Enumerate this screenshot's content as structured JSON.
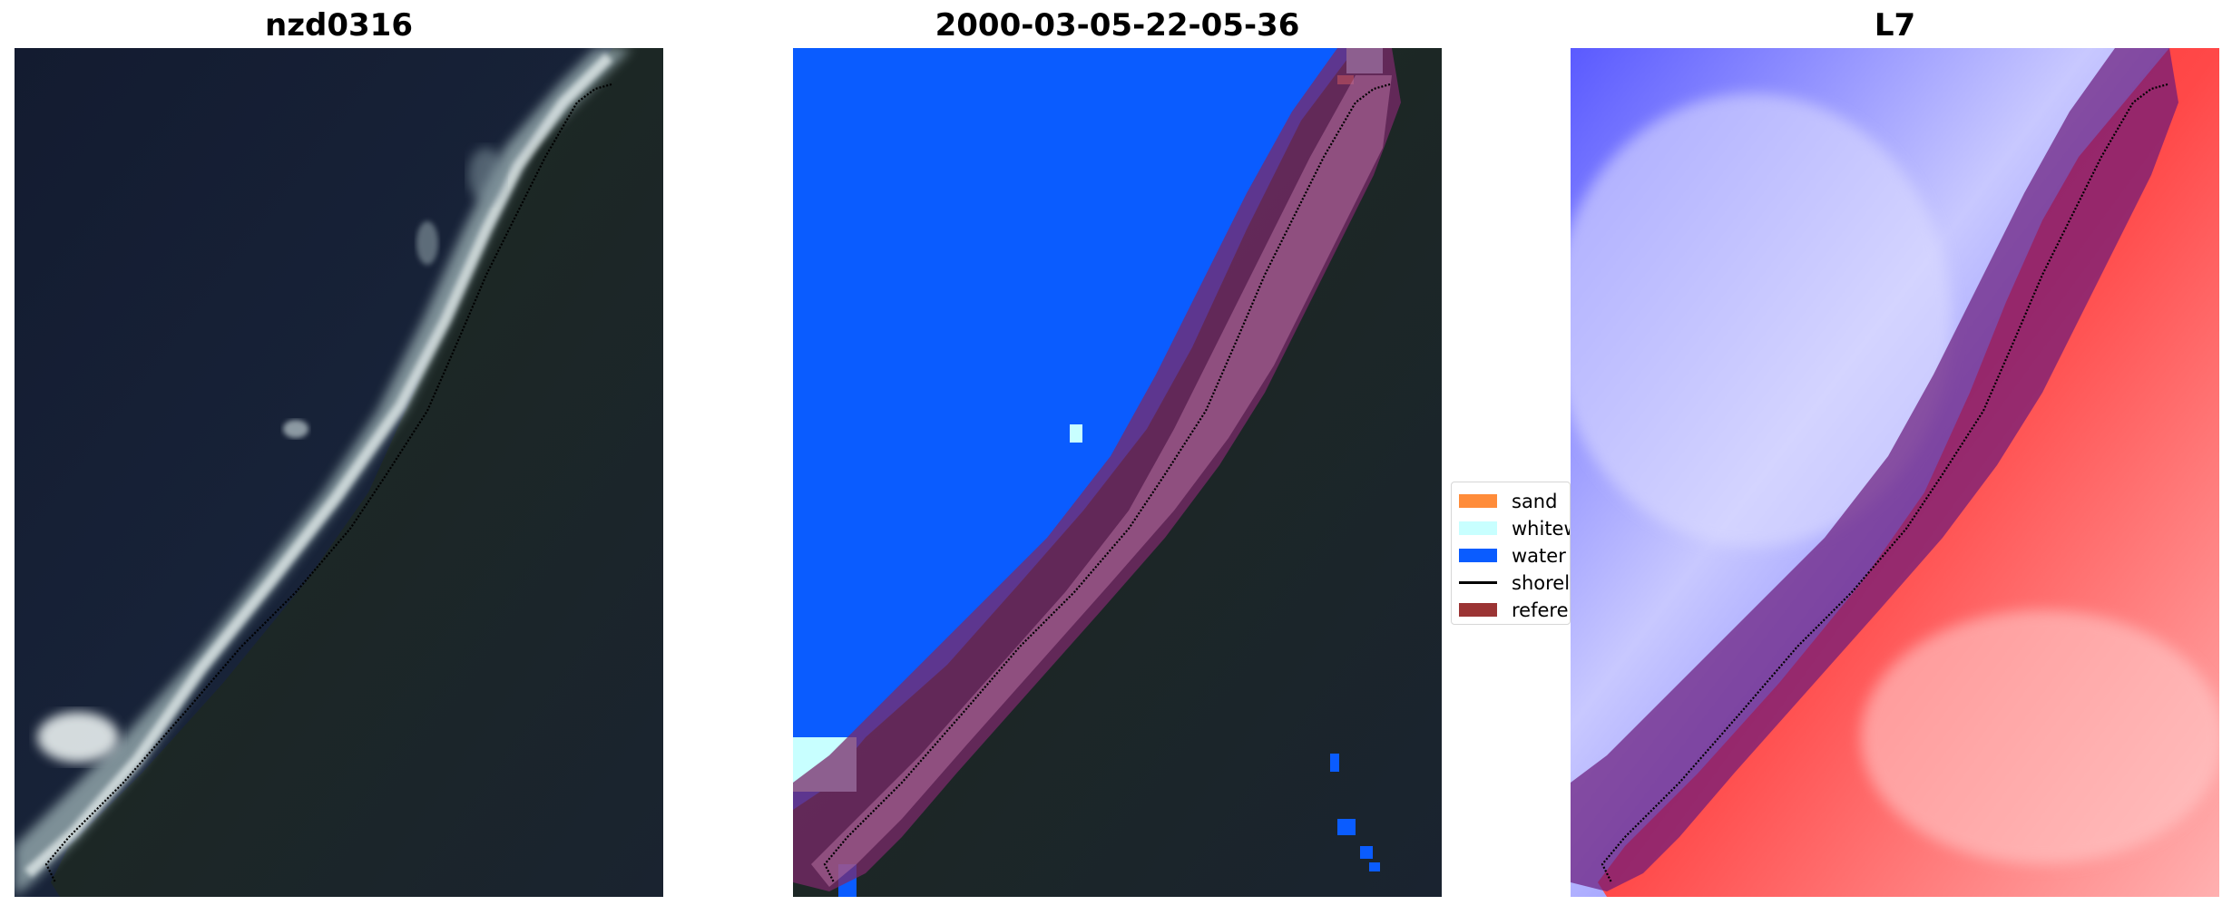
{
  "panels": [
    {
      "title": "nzd0316",
      "image": "satellite RGB image"
    },
    {
      "title": "2000-03-05-22-05-36",
      "image": "classified image"
    },
    {
      "title": "L7",
      "image": "water index image"
    }
  ],
  "legend": {
    "items": [
      {
        "label": "sand",
        "color": "#ff8c3a",
        "kind": "patch"
      },
      {
        "label": "whitew",
        "color": "#c8ffff",
        "kind": "patch"
      },
      {
        "label": "water",
        "color": "#0a5cff",
        "kind": "patch"
      },
      {
        "label": "shorel",
        "color": "#000000",
        "kind": "line"
      },
      {
        "label": "referen",
        "color": "#9b3434",
        "kind": "patch"
      }
    ]
  },
  "colors": {
    "ocean_dark": "#172036",
    "land_dark": "#1b2626",
    "whitewater": "#d9e4e4",
    "water_class": "#0a5cff",
    "buffer_overlay": "#7a1f4a",
    "index_water": "#3b3bff",
    "index_land": "#ff2222"
  }
}
